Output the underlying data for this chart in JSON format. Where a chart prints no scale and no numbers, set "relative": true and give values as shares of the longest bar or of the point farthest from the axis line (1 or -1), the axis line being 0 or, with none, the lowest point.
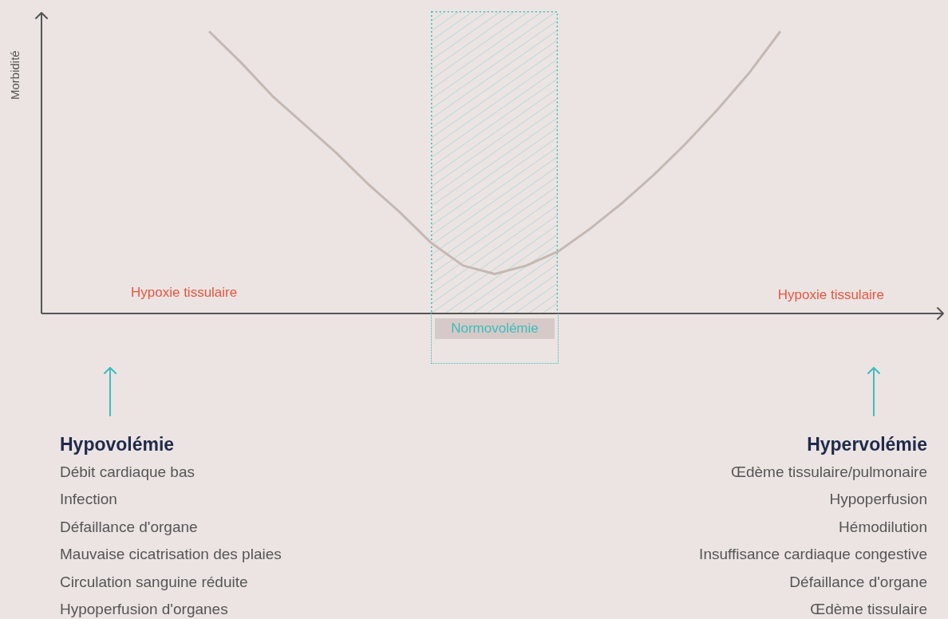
{
  "chart_data": {
    "type": "line",
    "relative": true,
    "ylabel": "Morbidité",
    "marker": "none",
    "categories": [
      null,
      null,
      null,
      null,
      null,
      null,
      null,
      null,
      null,
      null,
      null,
      null,
      null,
      null,
      null,
      null,
      null,
      null,
      null,
      null,
      null,
      null,
      null,
      null,
      null,
      null,
      null,
      null,
      null
    ],
    "series": [
      {
        "color": "#c5b8b2",
        "values": [
          null,
          null,
          null,
          null,
          null,
          1.0,
          0.89,
          0.77,
          0.67,
          0.57,
          0.46,
          0.36,
          0.25,
          0.17,
          0.14,
          0.17,
          0.22,
          0.3,
          0.39,
          0.49,
          0.6,
          0.72,
          0.85,
          1.0,
          null,
          null,
          null,
          null,
          null
        ]
      }
    ],
    "annotations": [
      "Hypoxie tissulaire",
      "Hypoxie tissulaire",
      "Hypovolémie",
      "Débit cardiaque bas",
      "Infection",
      "Défaillance d'organe",
      "Mauvaise cicatrisation des plaies",
      "Circulation sanguine réduite",
      "Hypoperfusion d'organes",
      "Hypervolémie",
      "Œdème tissulaire/pulmonaire",
      "Hypoperfusion",
      "Hémodilution",
      "Insuffisance cardiaque congestive",
      "Défaillance d'organe",
      "Œdème tissulaire",
      "Normovolémie"
    ]
  }
}
